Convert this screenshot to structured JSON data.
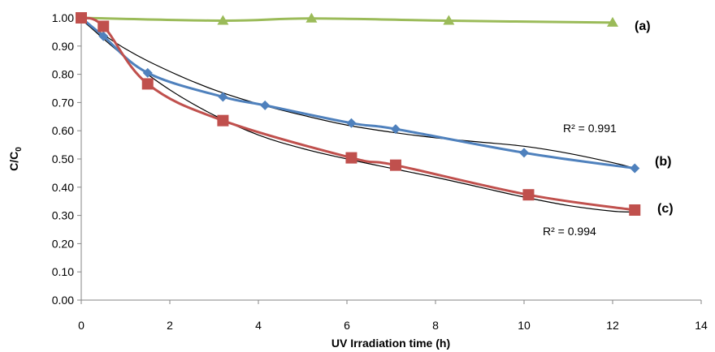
{
  "chart_data": {
    "type": "line",
    "title": "",
    "xlabel": "UV Irradiation time (h)",
    "ylabel": "C/C0",
    "ylabel_main": "C/C",
    "ylabel_sub": "0",
    "xlim": [
      0,
      14
    ],
    "ylim": [
      0,
      1
    ],
    "x_ticks": [
      0,
      2,
      4,
      6,
      8,
      10,
      12,
      14
    ],
    "x_tick_labels": [
      "0",
      "2",
      "4",
      "6",
      "8",
      "10",
      "12",
      "14"
    ],
    "y_ticks": [
      0,
      0.1,
      0.2,
      0.3,
      0.4,
      0.5,
      0.6,
      0.7,
      0.8,
      0.9,
      1.0
    ],
    "y_tick_labels": [
      "0.00",
      "0.10",
      "0.20",
      "0.30",
      "0.40",
      "0.50",
      "0.60",
      "0.70",
      "0.80",
      "0.90",
      "1.00"
    ],
    "grid": false,
    "series": [
      {
        "label": "(a)",
        "color": "#9BBB59",
        "marker": "triangle",
        "x": [
          0,
          3.2,
          5.2,
          8.3,
          12
        ],
        "y": [
          1.0,
          0.99,
          0.998,
          0.99,
          0.983
        ]
      },
      {
        "label": "(b)",
        "color": "#4F81BD",
        "marker": "diamond",
        "x": [
          0,
          0.5,
          1.5,
          3.2,
          4.15,
          6.1,
          7.1,
          10,
          12.5
        ],
        "y": [
          1.0,
          0.935,
          0.805,
          0.72,
          0.69,
          0.627,
          0.606,
          0.522,
          0.467
        ],
        "r2": "R² = 0.991"
      },
      {
        "label": "(c)",
        "color": "#C0504D",
        "marker": "square",
        "x": [
          0,
          0.5,
          1.5,
          3.2,
          6.1,
          7.1,
          10.1,
          12.5
        ],
        "y": [
          1.0,
          0.97,
          0.766,
          0.636,
          0.504,
          0.478,
          0.373,
          0.319
        ],
        "r2": "R² = 0.994"
      }
    ],
    "trendlines": [
      {
        "series": "(b)",
        "color": "#000000",
        "x": [
          0,
          1,
          2,
          3,
          4,
          5,
          6,
          7,
          8,
          9,
          10,
          11,
          12,
          12.5
        ],
        "y": [
          0.995,
          0.89,
          0.81,
          0.745,
          0.695,
          0.655,
          0.62,
          0.595,
          0.575,
          0.56,
          0.545,
          0.52,
          0.487,
          0.467
        ]
      },
      {
        "series": "(c)",
        "color": "#000000",
        "x": [
          0,
          1,
          2,
          3,
          4,
          5,
          6,
          7,
          8,
          9,
          10,
          11,
          12,
          12.5
        ],
        "y": [
          0.995,
          0.86,
          0.745,
          0.655,
          0.585,
          0.537,
          0.5,
          0.467,
          0.435,
          0.4,
          0.365,
          0.335,
          0.315,
          0.312
        ]
      }
    ]
  }
}
